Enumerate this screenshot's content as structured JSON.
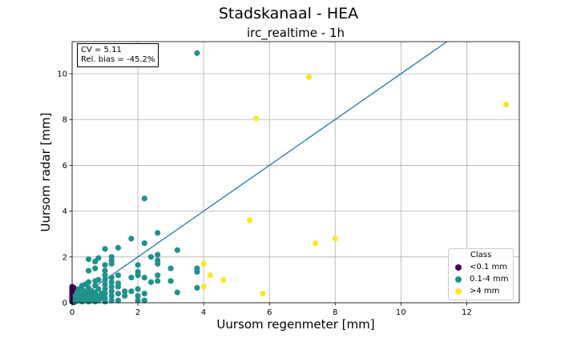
{
  "figure": {
    "suptitle": "Stadskanaal - HEA",
    "subtitle": "irc_realtime - 1h",
    "stats_lines": [
      "CV = 5.11",
      "Rel. bias = -45.2%"
    ]
  },
  "chart_data": {
    "type": "scatter",
    "xlabel": "Uursom regenmeter [mm]",
    "ylabel": "Uursom radar [mm]",
    "xlim": [
      0,
      13.6
    ],
    "ylim": [
      0,
      11.4
    ],
    "xticks": [
      0,
      2,
      4,
      6,
      8,
      10,
      12
    ],
    "yticks": [
      0,
      2,
      4,
      6,
      8,
      10
    ],
    "grid": true,
    "legend": {
      "title": "Class",
      "placement": "lower-right",
      "entries": [
        "<0.1 mm",
        "0.1-4 mm",
        ">4 mm"
      ]
    },
    "reference_line": {
      "slope": 1,
      "intercept": 0,
      "color": "#1f77b4"
    },
    "series": [
      {
        "name": "<0.1 mm",
        "color": "#440154",
        "points": [
          [
            0,
            0.05
          ],
          [
            0,
            0.12
          ],
          [
            0,
            0.2
          ],
          [
            0,
            0.28
          ],
          [
            0,
            0.36
          ],
          [
            0,
            0.44
          ],
          [
            0,
            0.52
          ],
          [
            0,
            0.6
          ],
          [
            0,
            0.7
          ],
          [
            0.05,
            0.02
          ],
          [
            0.05,
            0.1
          ],
          [
            0.05,
            0.2
          ],
          [
            0.05,
            0.35
          ],
          [
            0.05,
            0.5
          ],
          [
            0.05,
            0.65
          ],
          [
            0.08,
            0.15
          ]
        ]
      },
      {
        "name": "0.1-4 mm",
        "color": "#21918c",
        "points": [
          [
            0.1,
            0.05
          ],
          [
            0.1,
            0.15
          ],
          [
            0.1,
            0.3
          ],
          [
            0.15,
            0.45
          ],
          [
            0.2,
            0.1
          ],
          [
            0.2,
            0.25
          ],
          [
            0.2,
            0.6
          ],
          [
            0.3,
            0.05
          ],
          [
            0.3,
            0.2
          ],
          [
            0.3,
            0.35
          ],
          [
            0.3,
            0.55
          ],
          [
            0.3,
            0.75
          ],
          [
            0.4,
            0.1
          ],
          [
            0.4,
            0.3
          ],
          [
            0.4,
            0.5
          ],
          [
            0.4,
            0.8
          ],
          [
            0.5,
            0.05
          ],
          [
            0.5,
            0.2
          ],
          [
            0.5,
            0.4
          ],
          [
            0.5,
            0.65
          ],
          [
            0.5,
            0.9
          ],
          [
            0.5,
            1.4
          ],
          [
            0.5,
            1.9
          ],
          [
            0.6,
            0.1
          ],
          [
            0.6,
            0.3
          ],
          [
            0.6,
            0.5
          ],
          [
            0.7,
            0.05
          ],
          [
            0.7,
            0.25
          ],
          [
            0.7,
            0.45
          ],
          [
            0.7,
            0.75
          ],
          [
            0.7,
            0.95
          ],
          [
            0.7,
            1.5
          ],
          [
            0.7,
            1.8
          ],
          [
            0.8,
            0.1
          ],
          [
            0.8,
            0.3
          ],
          [
            0.8,
            0.6
          ],
          [
            0.8,
            1.0
          ],
          [
            0.8,
            1.95
          ],
          [
            0.9,
            0.2
          ],
          [
            0.9,
            0.4
          ],
          [
            1.0,
            0.05
          ],
          [
            1.0,
            0.2
          ],
          [
            1.0,
            0.4
          ],
          [
            1.0,
            0.6
          ],
          [
            1.0,
            0.8
          ],
          [
            1.0,
            1.0
          ],
          [
            1.0,
            1.2
          ],
          [
            1.0,
            1.4
          ],
          [
            1.0,
            1.65
          ],
          [
            1.0,
            2.35
          ],
          [
            1.2,
            0.1
          ],
          [
            1.2,
            0.3
          ],
          [
            1.2,
            0.5
          ],
          [
            1.2,
            0.7
          ],
          [
            1.2,
            0.9
          ],
          [
            1.2,
            1.1
          ],
          [
            1.2,
            1.7
          ],
          [
            1.2,
            1.85
          ],
          [
            1.2,
            2.0
          ],
          [
            1.4,
            0.1
          ],
          [
            1.4,
            0.4
          ],
          [
            1.4,
            0.7
          ],
          [
            1.4,
            0.85
          ],
          [
            1.4,
            1.2
          ],
          [
            1.4,
            2.4
          ],
          [
            1.6,
            0.3
          ],
          [
            1.6,
            0.5
          ],
          [
            1.8,
            0.5
          ],
          [
            1.8,
            1.1
          ],
          [
            1.8,
            2.8
          ],
          [
            2.0,
            0.1
          ],
          [
            2.0,
            0.3
          ],
          [
            2.0,
            0.6
          ],
          [
            2.0,
            1.2
          ],
          [
            2.0,
            1.35
          ],
          [
            2.0,
            1.65
          ],
          [
            2.2,
            0.1
          ],
          [
            2.2,
            0.4
          ],
          [
            2.2,
            1.1
          ],
          [
            2.2,
            2.6
          ],
          [
            2.2,
            4.55
          ],
          [
            2.4,
            0.9
          ],
          [
            2.4,
            2.0
          ],
          [
            2.6,
            0.95
          ],
          [
            2.6,
            1.2
          ],
          [
            2.6,
            1.7
          ],
          [
            2.6,
            1.85
          ],
          [
            2.6,
            2.1
          ],
          [
            2.6,
            3.05
          ],
          [
            3.0,
            0.95
          ],
          [
            3.0,
            1.5
          ],
          [
            3.2,
            0.45
          ],
          [
            3.2,
            2.3
          ],
          [
            3.8,
            0.65
          ],
          [
            3.8,
            1.35
          ],
          [
            3.8,
            1.5
          ],
          [
            3.8,
            10.9
          ]
        ]
      },
      {
        "name": ">4 mm",
        "color": "#fde725",
        "points": [
          [
            4.0,
            0.7
          ],
          [
            4.0,
            1.7
          ],
          [
            4.2,
            1.2
          ],
          [
            4.6,
            1.0
          ],
          [
            5.4,
            3.6
          ],
          [
            5.6,
            8.05
          ],
          [
            5.8,
            0.4
          ],
          [
            7.2,
            9.85
          ],
          [
            7.4,
            2.6
          ],
          [
            8.0,
            2.8
          ],
          [
            13.2,
            8.65
          ]
        ]
      }
    ]
  }
}
